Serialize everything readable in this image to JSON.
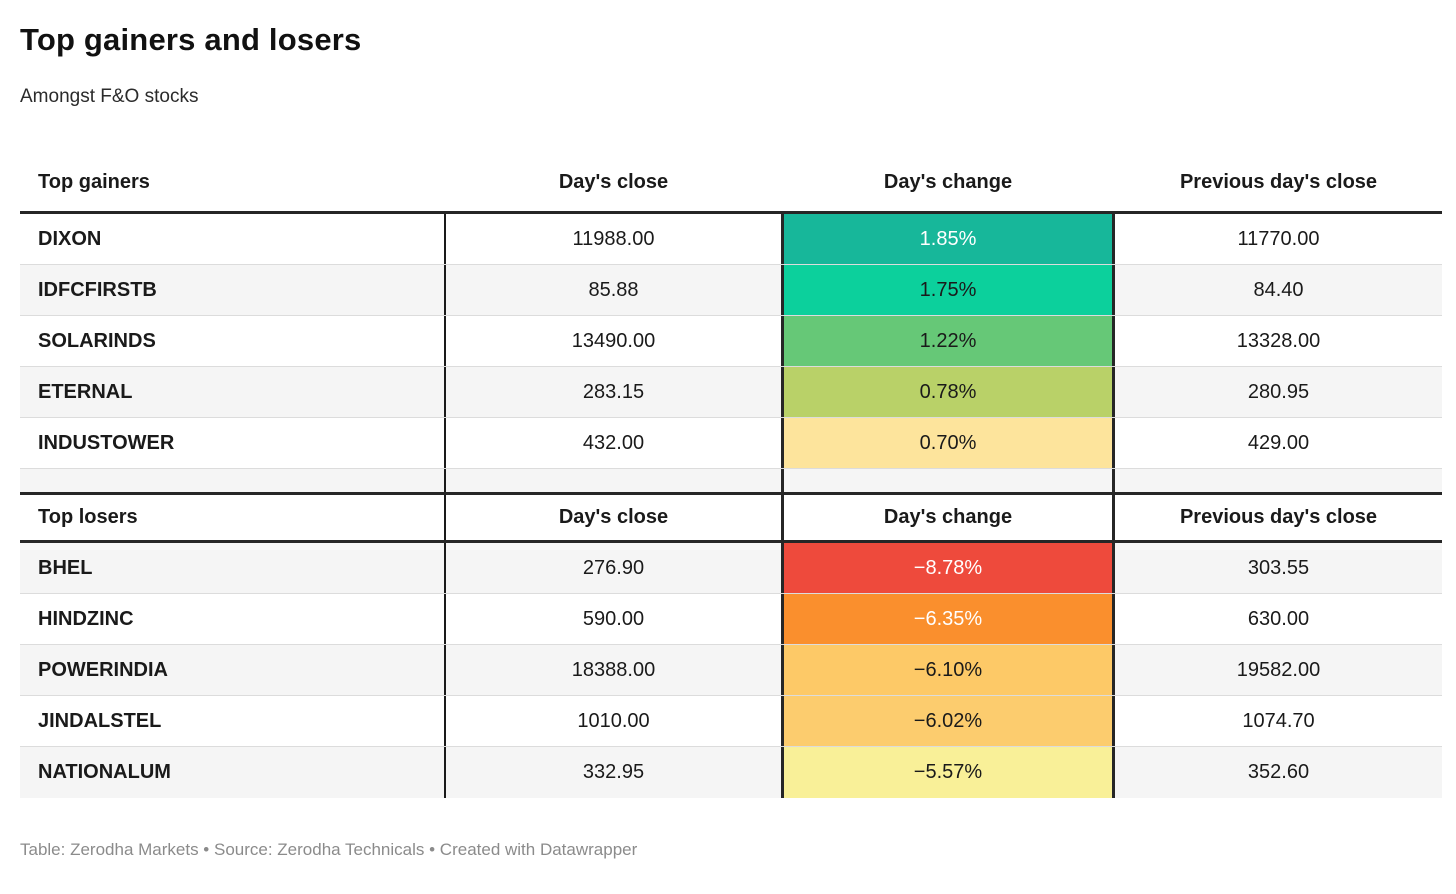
{
  "header": {
    "title": "Top gainers and losers",
    "subtitle": "Amongst F&O stocks"
  },
  "columns": {
    "gainers_label": "Top gainers",
    "losers_label": "Top losers",
    "days_close": "Day's close",
    "days_change": "Day's change",
    "prev_close": "Previous day's close"
  },
  "colors": {
    "thick_border": "#262626",
    "thin_border": "#dcdcdc",
    "alt_row_bg": "#f5f5f5",
    "footer_text": "#8b8b8b"
  },
  "gainers": {
    "rows": [
      {
        "name": "DIXON",
        "close": "11988.00",
        "change": "1.85%",
        "prev_close": "11770.00",
        "change_bg": "#17b79a",
        "change_fg": "#ffffff"
      },
      {
        "name": "IDFCFIRSTB",
        "close": "85.88",
        "change": "1.75%",
        "prev_close": "84.40",
        "change_bg": "#0cd09c",
        "change_fg": "#1a1a1a"
      },
      {
        "name": "SOLARINDS",
        "close": "13490.00",
        "change": "1.22%",
        "prev_close": "13328.00",
        "change_bg": "#66c877",
        "change_fg": "#1a1a1a"
      },
      {
        "name": "ETERNAL",
        "close": "283.15",
        "change": "0.78%",
        "prev_close": "280.95",
        "change_bg": "#b9d168",
        "change_fg": "#1a1a1a"
      },
      {
        "name": "INDUSTOWER",
        "close": "432.00",
        "change": "0.70%",
        "prev_close": "429.00",
        "change_bg": "#fde49c",
        "change_fg": "#1a1a1a"
      }
    ]
  },
  "losers": {
    "rows": [
      {
        "name": "BHEL",
        "close": "276.90",
        "change": "−8.78%",
        "prev_close": "303.55",
        "change_bg": "#ee4a3c",
        "change_fg": "#ffffff"
      },
      {
        "name": "HINDZINC",
        "close": "590.00",
        "change": "−6.35%",
        "prev_close": "630.00",
        "change_bg": "#fa8f2d",
        "change_fg": "#ffffff"
      },
      {
        "name": "POWERINDIA",
        "close": "18388.00",
        "change": "−6.10%",
        "prev_close": "19582.00",
        "change_bg": "#fdc967",
        "change_fg": "#1a1a1a"
      },
      {
        "name": "JINDALSTEL",
        "close": "1010.00",
        "change": "−6.02%",
        "prev_close": "1074.70",
        "change_bg": "#fccc6e",
        "change_fg": "#1a1a1a"
      },
      {
        "name": "NATIONALUM",
        "close": "332.95",
        "change": "−5.57%",
        "prev_close": "352.60",
        "change_bg": "#f9f098",
        "change_fg": "#1a1a1a"
      }
    ]
  },
  "footer": {
    "text": "Table: Zerodha Markets • Source: Zerodha Technicals • Created with Datawrapper"
  },
  "chart_data": {
    "type": "table",
    "title": "Top gainers and losers",
    "subtitle": "Amongst F&O stocks",
    "tables": [
      {
        "columns": [
          "Top gainers",
          "Day's close",
          "Day's change",
          "Previous day's close"
        ],
        "rows": [
          [
            "DIXON",
            11988.0,
            1.85,
            11770.0
          ],
          [
            "IDFCFIRSTB",
            85.88,
            1.75,
            84.4
          ],
          [
            "SOLARINDS",
            13490.0,
            1.22,
            13328.0
          ],
          [
            "ETERNAL",
            283.15,
            0.78,
            280.95
          ],
          [
            "INDUSTOWER",
            432.0,
            0.7,
            429.0
          ]
        ],
        "change_units": "percent",
        "heatmap_column": "Day's change",
        "heatmap_scale": "green (high gain) to yellow (low gain)"
      },
      {
        "columns": [
          "Top losers",
          "Day's close",
          "Day's change",
          "Previous day's close"
        ],
        "rows": [
          [
            "BHEL",
            276.9,
            -8.78,
            303.55
          ],
          [
            "HINDZINC",
            590.0,
            -6.35,
            630.0
          ],
          [
            "POWERINDIA",
            18388.0,
            -6.1,
            19582.0
          ],
          [
            "JINDALSTEL",
            1010.0,
            -6.02,
            1074.7
          ],
          [
            "NATIONALUM",
            332.95,
            -5.57,
            352.6
          ]
        ],
        "change_units": "percent",
        "heatmap_column": "Day's change",
        "heatmap_scale": "red (big loss) to light yellow (small loss)"
      }
    ],
    "footer": "Table: Zerodha Markets • Source: Zerodha Technicals • Created with Datawrapper"
  }
}
